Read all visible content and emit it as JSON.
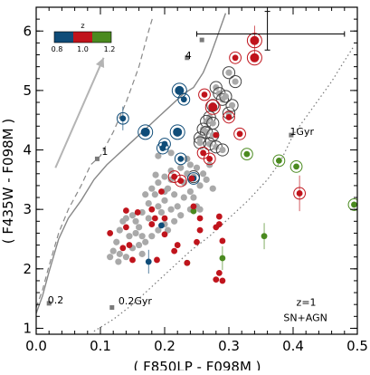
{
  "chart_data": {
    "type": "scatter",
    "xlabel": "( F850LP - F098M )",
    "ylabel": "( F435W - F098M )",
    "xlim": [
      0.0,
      0.5
    ],
    "ylim": [
      0.9,
      6.4
    ],
    "x_ticks": [
      "0.0",
      "0.1",
      "0.2",
      "0.3",
      "0.4",
      "0.5"
    ],
    "y_ticks": [
      "1",
      "2",
      "3",
      "4",
      "5",
      "6"
    ],
    "grid": false,
    "colorbar": {
      "label": "z",
      "ticks": [
        "0.8",
        "1.0",
        "1.2"
      ],
      "colors": [
        "#0f4c78",
        "#c0141c",
        "#4a8a1f"
      ],
      "placement": "top-left"
    },
    "annotations": [
      {
        "text": "z=1",
        "x": 0.405,
        "y": 1.38
      },
      {
        "text": "SN+AGN",
        "x": 0.385,
        "y": 1.12
      },
      {
        "text": "4",
        "x": 0.232,
        "y": 5.53
      },
      {
        "text": "1",
        "x": 0.102,
        "y": 3.92
      },
      {
        "text": "0.2",
        "x": 0.018,
        "y": 1.42
      },
      {
        "text": "1Gyr",
        "x": 0.395,
        "y": 4.25
      },
      {
        "text": "0.2Gyr",
        "x": 0.128,
        "y": 1.4
      }
    ],
    "error_bar": {
      "x": 0.36,
      "y": 5.95,
      "xerr": [
        0.25,
        0.48
      ],
      "yerr": [
        5.68,
        6.33
      ]
    },
    "reddening_arrow": {
      "from": [
        0.03,
        3.7
      ],
      "to": [
        0.105,
        5.55
      ]
    },
    "tracks": [
      {
        "name": "track-solid",
        "style": "solid",
        "points": [
          [
            0.0,
            1.25
          ],
          [
            0.01,
            1.55
          ],
          [
            0.02,
            1.95
          ],
          [
            0.035,
            2.5
          ],
          [
            0.05,
            2.85
          ],
          [
            0.07,
            3.15
          ],
          [
            0.09,
            3.5
          ],
          [
            0.11,
            3.75
          ],
          [
            0.13,
            3.95
          ],
          [
            0.15,
            4.15
          ],
          [
            0.17,
            4.35
          ],
          [
            0.19,
            4.55
          ],
          [
            0.21,
            4.75
          ],
          [
            0.23,
            4.95
          ],
          [
            0.245,
            5.05
          ],
          [
            0.26,
            5.3
          ],
          [
            0.27,
            5.55
          ],
          [
            0.28,
            5.85
          ],
          [
            0.29,
            6.15
          ],
          [
            0.295,
            6.3
          ]
        ]
      },
      {
        "name": "track-dashed",
        "style": "dashed",
        "points": [
          [
            0.0,
            1.35
          ],
          [
            0.01,
            1.65
          ],
          [
            0.02,
            2.05
          ],
          [
            0.035,
            2.6
          ],
          [
            0.05,
            3.0
          ],
          [
            0.07,
            3.4
          ],
          [
            0.085,
            3.75
          ],
          [
            0.1,
            3.9
          ],
          [
            0.12,
            4.3
          ],
          [
            0.14,
            4.8
          ],
          [
            0.16,
            5.4
          ],
          [
            0.175,
            6.0
          ],
          [
            0.182,
            6.25
          ]
        ]
      },
      {
        "name": "track-dotted",
        "style": "dotted",
        "points": [
          [
            0.09,
            0.95
          ],
          [
            0.12,
            1.15
          ],
          [
            0.15,
            1.4
          ],
          [
            0.18,
            1.7
          ],
          [
            0.21,
            2.0
          ],
          [
            0.24,
            2.3
          ],
          [
            0.27,
            2.55
          ],
          [
            0.3,
            2.85
          ],
          [
            0.33,
            3.15
          ],
          [
            0.36,
            3.5
          ],
          [
            0.38,
            3.8
          ],
          [
            0.4,
            4.25
          ],
          [
            0.42,
            4.55
          ],
          [
            0.44,
            4.85
          ],
          [
            0.46,
            5.15
          ],
          [
            0.48,
            5.5
          ],
          [
            0.495,
            5.75
          ]
        ]
      }
    ],
    "track_markers": [
      {
        "x": 0.235,
        "y": 5.55
      },
      {
        "x": 0.258,
        "y": 5.85
      },
      {
        "x": 0.02,
        "y": 1.42
      },
      {
        "x": 0.095,
        "y": 3.85
      },
      {
        "x": 0.397,
        "y": 4.25
      },
      {
        "x": 0.118,
        "y": 1.35
      }
    ],
    "series": [
      {
        "name": "z~0.8",
        "color": "#0f4c78",
        "points": [
          {
            "x": 0.135,
            "y": 4.53,
            "ring": true,
            "yerr": 0.2
          },
          {
            "x": 0.17,
            "y": 4.3,
            "ring": true,
            "size": "large"
          },
          {
            "x": 0.223,
            "y": 5.0,
            "ring": true,
            "size": "large"
          },
          {
            "x": 0.23,
            "y": 4.85,
            "ring": true
          },
          {
            "x": 0.22,
            "y": 4.3,
            "ring": true,
            "size": "large"
          },
          {
            "x": 0.2,
            "y": 4.1,
            "ring": true
          },
          {
            "x": 0.197,
            "y": 4.03,
            "ring": true
          },
          {
            "x": 0.225,
            "y": 3.85,
            "ring": true
          },
          {
            "x": 0.175,
            "y": 2.12,
            "yerr": 0.2
          },
          {
            "x": 0.195,
            "y": 2.73
          },
          {
            "x": 0.245,
            "y": 3.52,
            "ring": true
          }
        ]
      },
      {
        "name": "z~1.0",
        "color": "#c0141c",
        "points": [
          {
            "x": 0.34,
            "y": 5.84,
            "ring": true,
            "size": "large",
            "yerr": 0.25
          },
          {
            "x": 0.34,
            "y": 5.55,
            "ring": true,
            "size": "large"
          },
          {
            "x": 0.31,
            "y": 5.55,
            "ring": true
          },
          {
            "x": 0.262,
            "y": 4.93,
            "ring": true
          },
          {
            "x": 0.275,
            "y": 4.72,
            "ring": true,
            "size": "large"
          },
          {
            "x": 0.3,
            "y": 4.55,
            "ring": true
          },
          {
            "x": 0.317,
            "y": 4.27,
            "ring": true
          },
          {
            "x": 0.28,
            "y": 4.25
          },
          {
            "x": 0.26,
            "y": 3.95,
            "ring": true
          },
          {
            "x": 0.27,
            "y": 3.85,
            "ring": true
          },
          {
            "x": 0.215,
            "y": 3.55,
            "ring": true
          },
          {
            "x": 0.225,
            "y": 3.48,
            "ring": true
          },
          {
            "x": 0.41,
            "y": 3.27,
            "ring": true,
            "yerr": 0.3
          },
          {
            "x": 0.242,
            "y": 3.52
          },
          {
            "x": 0.195,
            "y": 3.3
          },
          {
            "x": 0.18,
            "y": 3.0
          },
          {
            "x": 0.185,
            "y": 2.85
          },
          {
            "x": 0.158,
            "y": 2.95
          },
          {
            "x": 0.2,
            "y": 2.85
          },
          {
            "x": 0.18,
            "y": 2.75
          },
          {
            "x": 0.255,
            "y": 2.85
          },
          {
            "x": 0.255,
            "y": 2.65
          },
          {
            "x": 0.285,
            "y": 2.75
          },
          {
            "x": 0.14,
            "y": 2.7
          },
          {
            "x": 0.115,
            "y": 2.6
          },
          {
            "x": 0.145,
            "y": 2.4
          },
          {
            "x": 0.135,
            "y": 2.35
          },
          {
            "x": 0.188,
            "y": 2.15
          },
          {
            "x": 0.285,
            "y": 1.93
          },
          {
            "x": 0.29,
            "y": 1.8
          },
          {
            "x": 0.28,
            "y": 1.82
          },
          {
            "x": 0.22,
            "y": 2.4
          },
          {
            "x": 0.215,
            "y": 2.3
          },
          {
            "x": 0.235,
            "y": 2.1
          },
          {
            "x": 0.29,
            "y": 2.47
          },
          {
            "x": 0.28,
            "y": 2.7
          },
          {
            "x": 0.285,
            "y": 2.88
          },
          {
            "x": 0.2,
            "y": 2.58
          },
          {
            "x": 0.14,
            "y": 2.98
          },
          {
            "x": 0.15,
            "y": 2.15
          },
          {
            "x": 0.245,
            "y": 3.05
          },
          {
            "x": 0.25,
            "y": 2.45
          }
        ]
      },
      {
        "name": "z~1.2",
        "color": "#4a8a1f",
        "points": [
          {
            "x": 0.328,
            "y": 3.93,
            "ring": true
          },
          {
            "x": 0.378,
            "y": 3.82,
            "ring": true
          },
          {
            "x": 0.405,
            "y": 3.72,
            "ring": true
          },
          {
            "x": 0.495,
            "y": 3.08,
            "ring": true
          },
          {
            "x": 0.355,
            "y": 2.55,
            "yerr": 0.22
          },
          {
            "x": 0.29,
            "y": 2.18,
            "yerr": 0.2
          },
          {
            "x": 0.245,
            "y": 2.97
          },
          {
            "x": 0.235,
            "y": 2.1
          }
        ]
      },
      {
        "name": "grey",
        "color": "#a9a9a9",
        "points": [
          {
            "x": 0.28,
            "y": 5.05,
            "ring": true
          },
          {
            "x": 0.285,
            "y": 4.95,
            "ring": true
          },
          {
            "x": 0.29,
            "y": 4.85,
            "ring": true
          },
          {
            "x": 0.295,
            "y": 4.9,
            "ring": true
          },
          {
            "x": 0.275,
            "y": 4.75,
            "ring": true
          },
          {
            "x": 0.27,
            "y": 4.55,
            "ring": true
          },
          {
            "x": 0.265,
            "y": 4.48,
            "ring": true
          },
          {
            "x": 0.275,
            "y": 4.45,
            "ring": true
          },
          {
            "x": 0.26,
            "y": 4.35,
            "ring": true
          },
          {
            "x": 0.265,
            "y": 4.3,
            "ring": true
          },
          {
            "x": 0.275,
            "y": 4.25,
            "ring": true
          },
          {
            "x": 0.255,
            "y": 4.2,
            "ring": true
          },
          {
            "x": 0.255,
            "y": 4.12,
            "ring": true
          },
          {
            "x": 0.27,
            "y": 4.1,
            "ring": true
          },
          {
            "x": 0.28,
            "y": 4.05,
            "ring": true
          },
          {
            "x": 0.29,
            "y": 4.0,
            "ring": true
          },
          {
            "x": 0.3,
            "y": 4.62,
            "ring": true
          },
          {
            "x": 0.305,
            "y": 4.75,
            "ring": true
          },
          {
            "x": 0.31,
            "y": 5.15,
            "ring": true
          },
          {
            "x": 0.3,
            "y": 5.3,
            "ring": true
          },
          {
            "x": 0.245,
            "y": 3.55,
            "ring": true
          },
          {
            "x": 0.24,
            "y": 3.75
          },
          {
            "x": 0.25,
            "y": 3.7
          },
          {
            "x": 0.235,
            "y": 3.6
          },
          {
            "x": 0.225,
            "y": 3.7
          },
          {
            "x": 0.21,
            "y": 3.65
          },
          {
            "x": 0.2,
            "y": 3.55
          },
          {
            "x": 0.19,
            "y": 3.45
          },
          {
            "x": 0.205,
            "y": 3.35
          },
          {
            "x": 0.215,
            "y": 3.25
          },
          {
            "x": 0.23,
            "y": 3.2
          },
          {
            "x": 0.24,
            "y": 3.3
          },
          {
            "x": 0.255,
            "y": 3.4
          },
          {
            "x": 0.265,
            "y": 3.5
          },
          {
            "x": 0.18,
            "y": 3.35
          },
          {
            "x": 0.17,
            "y": 3.25
          },
          {
            "x": 0.175,
            "y": 3.1
          },
          {
            "x": 0.19,
            "y": 3.05
          },
          {
            "x": 0.2,
            "y": 3.15
          },
          {
            "x": 0.21,
            "y": 3.0
          },
          {
            "x": 0.22,
            "y": 3.05
          },
          {
            "x": 0.225,
            "y": 2.9
          },
          {
            "x": 0.215,
            "y": 2.8
          },
          {
            "x": 0.2,
            "y": 2.75
          },
          {
            "x": 0.19,
            "y": 2.65
          },
          {
            "x": 0.18,
            "y": 2.55
          },
          {
            "x": 0.17,
            "y": 2.45
          },
          {
            "x": 0.165,
            "y": 2.55
          },
          {
            "x": 0.16,
            "y": 2.7
          },
          {
            "x": 0.155,
            "y": 2.8
          },
          {
            "x": 0.15,
            "y": 2.9
          },
          {
            "x": 0.14,
            "y": 2.85
          },
          {
            "x": 0.13,
            "y": 2.65
          },
          {
            "x": 0.125,
            "y": 2.45
          },
          {
            "x": 0.12,
            "y": 2.3
          },
          {
            "x": 0.13,
            "y": 2.25
          },
          {
            "x": 0.115,
            "y": 2.2
          },
          {
            "x": 0.128,
            "y": 2.12
          },
          {
            "x": 0.14,
            "y": 2.2
          },
          {
            "x": 0.15,
            "y": 2.35
          },
          {
            "x": 0.16,
            "y": 2.4
          },
          {
            "x": 0.165,
            "y": 2.25
          },
          {
            "x": 0.155,
            "y": 2.6
          },
          {
            "x": 0.145,
            "y": 2.55
          },
          {
            "x": 0.135,
            "y": 2.8
          },
          {
            "x": 0.23,
            "y": 3.45
          },
          {
            "x": 0.245,
            "y": 3.2
          },
          {
            "x": 0.25,
            "y": 3.05
          },
          {
            "x": 0.255,
            "y": 3.0
          },
          {
            "x": 0.235,
            "y": 3.85
          },
          {
            "x": 0.26,
            "y": 3.6
          },
          {
            "x": 0.27,
            "y": 3.75
          },
          {
            "x": 0.21,
            "y": 3.95
          },
          {
            "x": 0.19,
            "y": 3.9
          },
          {
            "x": 0.185,
            "y": 3.25
          },
          {
            "x": 0.195,
            "y": 2.95
          },
          {
            "x": 0.205,
            "y": 2.65
          },
          {
            "x": 0.175,
            "y": 2.85
          },
          {
            "x": 0.165,
            "y": 2.95
          },
          {
            "x": 0.21,
            "y": 3.5
          },
          {
            "x": 0.275,
            "y": 3.35
          },
          {
            "x": 0.2,
            "y": 3.3
          },
          {
            "x": 0.186,
            "y": 3.58
          },
          {
            "x": 0.24,
            "y": 3.0
          }
        ]
      }
    ]
  }
}
